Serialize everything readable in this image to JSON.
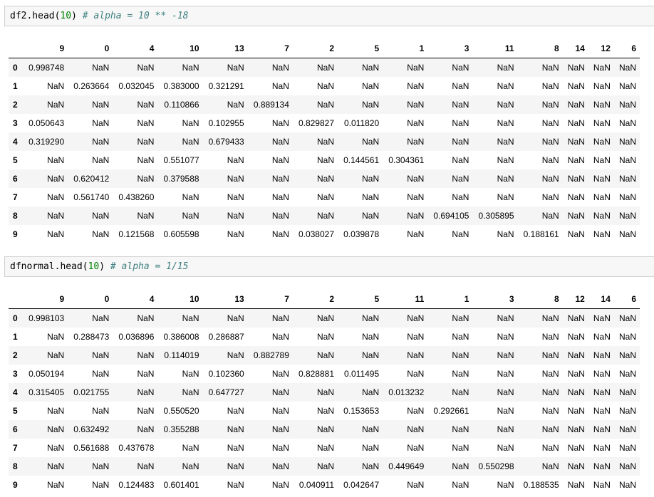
{
  "cells": [
    {
      "code": {
        "prefix": "df2.head(",
        "arg": "10",
        "suffix": ") ",
        "comment": "# alpha = 10 ** -18"
      },
      "columns": [
        "9",
        "0",
        "4",
        "10",
        "13",
        "7",
        "2",
        "5",
        "1",
        "3",
        "11",
        "8",
        "14",
        "12",
        "6"
      ],
      "rows": [
        {
          "index": "0",
          "values": [
            "0.998748",
            "NaN",
            "NaN",
            "NaN",
            "NaN",
            "NaN",
            "NaN",
            "NaN",
            "NaN",
            "NaN",
            "NaN",
            "NaN",
            "NaN",
            "NaN",
            "NaN"
          ]
        },
        {
          "index": "1",
          "values": [
            "NaN",
            "0.263664",
            "0.032045",
            "0.383000",
            "0.321291",
            "NaN",
            "NaN",
            "NaN",
            "NaN",
            "NaN",
            "NaN",
            "NaN",
            "NaN",
            "NaN",
            "NaN"
          ]
        },
        {
          "index": "2",
          "values": [
            "NaN",
            "NaN",
            "NaN",
            "0.110866",
            "NaN",
            "0.889134",
            "NaN",
            "NaN",
            "NaN",
            "NaN",
            "NaN",
            "NaN",
            "NaN",
            "NaN",
            "NaN"
          ]
        },
        {
          "index": "3",
          "values": [
            "0.050643",
            "NaN",
            "NaN",
            "NaN",
            "0.102955",
            "NaN",
            "0.829827",
            "0.011820",
            "NaN",
            "NaN",
            "NaN",
            "NaN",
            "NaN",
            "NaN",
            "NaN"
          ]
        },
        {
          "index": "4",
          "values": [
            "0.319290",
            "NaN",
            "NaN",
            "NaN",
            "0.679433",
            "NaN",
            "NaN",
            "NaN",
            "NaN",
            "NaN",
            "NaN",
            "NaN",
            "NaN",
            "NaN",
            "NaN"
          ]
        },
        {
          "index": "5",
          "values": [
            "NaN",
            "NaN",
            "NaN",
            "0.551077",
            "NaN",
            "NaN",
            "NaN",
            "0.144561",
            "0.304361",
            "NaN",
            "NaN",
            "NaN",
            "NaN",
            "NaN",
            "NaN"
          ]
        },
        {
          "index": "6",
          "values": [
            "NaN",
            "0.620412",
            "NaN",
            "0.379588",
            "NaN",
            "NaN",
            "NaN",
            "NaN",
            "NaN",
            "NaN",
            "NaN",
            "NaN",
            "NaN",
            "NaN",
            "NaN"
          ]
        },
        {
          "index": "7",
          "values": [
            "NaN",
            "0.561740",
            "0.438260",
            "NaN",
            "NaN",
            "NaN",
            "NaN",
            "NaN",
            "NaN",
            "NaN",
            "NaN",
            "NaN",
            "NaN",
            "NaN",
            "NaN"
          ]
        },
        {
          "index": "8",
          "values": [
            "NaN",
            "NaN",
            "NaN",
            "NaN",
            "NaN",
            "NaN",
            "NaN",
            "NaN",
            "NaN",
            "0.694105",
            "0.305895",
            "NaN",
            "NaN",
            "NaN",
            "NaN"
          ]
        },
        {
          "index": "9",
          "values": [
            "NaN",
            "NaN",
            "0.121568",
            "0.605598",
            "NaN",
            "NaN",
            "0.038027",
            "0.039878",
            "NaN",
            "NaN",
            "NaN",
            "0.188161",
            "NaN",
            "NaN",
            "NaN"
          ]
        }
      ]
    },
    {
      "code": {
        "prefix": "dfnormal.head(",
        "arg": "10",
        "suffix": ") ",
        "comment": "# alpha = 1/15"
      },
      "columns": [
        "9",
        "0",
        "4",
        "10",
        "13",
        "7",
        "2",
        "5",
        "11",
        "1",
        "3",
        "8",
        "12",
        "14",
        "6"
      ],
      "rows": [
        {
          "index": "0",
          "values": [
            "0.998103",
            "NaN",
            "NaN",
            "NaN",
            "NaN",
            "NaN",
            "NaN",
            "NaN",
            "NaN",
            "NaN",
            "NaN",
            "NaN",
            "NaN",
            "NaN",
            "NaN"
          ]
        },
        {
          "index": "1",
          "values": [
            "NaN",
            "0.288473",
            "0.036896",
            "0.386008",
            "0.286887",
            "NaN",
            "NaN",
            "NaN",
            "NaN",
            "NaN",
            "NaN",
            "NaN",
            "NaN",
            "NaN",
            "NaN"
          ]
        },
        {
          "index": "2",
          "values": [
            "NaN",
            "NaN",
            "NaN",
            "0.114019",
            "NaN",
            "0.882789",
            "NaN",
            "NaN",
            "NaN",
            "NaN",
            "NaN",
            "NaN",
            "NaN",
            "NaN",
            "NaN"
          ]
        },
        {
          "index": "3",
          "values": [
            "0.050194",
            "NaN",
            "NaN",
            "NaN",
            "0.102360",
            "NaN",
            "0.828881",
            "0.011495",
            "NaN",
            "NaN",
            "NaN",
            "NaN",
            "NaN",
            "NaN",
            "NaN"
          ]
        },
        {
          "index": "4",
          "values": [
            "0.315405",
            "0.021755",
            "NaN",
            "NaN",
            "0.647727",
            "NaN",
            "NaN",
            "NaN",
            "0.013232",
            "NaN",
            "NaN",
            "NaN",
            "NaN",
            "NaN",
            "NaN"
          ]
        },
        {
          "index": "5",
          "values": [
            "NaN",
            "NaN",
            "NaN",
            "0.550520",
            "NaN",
            "NaN",
            "NaN",
            "0.153653",
            "NaN",
            "0.292661",
            "NaN",
            "NaN",
            "NaN",
            "NaN",
            "NaN"
          ]
        },
        {
          "index": "6",
          "values": [
            "NaN",
            "0.632492",
            "NaN",
            "0.355288",
            "NaN",
            "NaN",
            "NaN",
            "NaN",
            "NaN",
            "NaN",
            "NaN",
            "NaN",
            "NaN",
            "NaN",
            "NaN"
          ]
        },
        {
          "index": "7",
          "values": [
            "NaN",
            "0.561688",
            "0.437678",
            "NaN",
            "NaN",
            "NaN",
            "NaN",
            "NaN",
            "NaN",
            "NaN",
            "NaN",
            "NaN",
            "NaN",
            "NaN",
            "NaN"
          ]
        },
        {
          "index": "8",
          "values": [
            "NaN",
            "NaN",
            "NaN",
            "NaN",
            "NaN",
            "NaN",
            "NaN",
            "NaN",
            "0.449649",
            "NaN",
            "0.550298",
            "NaN",
            "NaN",
            "NaN",
            "NaN"
          ]
        },
        {
          "index": "9",
          "values": [
            "NaN",
            "NaN",
            "0.124483",
            "0.601401",
            "NaN",
            "NaN",
            "0.040911",
            "0.042647",
            "NaN",
            "NaN",
            "NaN",
            "0.188535",
            "NaN",
            "NaN",
            "NaN"
          ]
        }
      ]
    }
  ]
}
